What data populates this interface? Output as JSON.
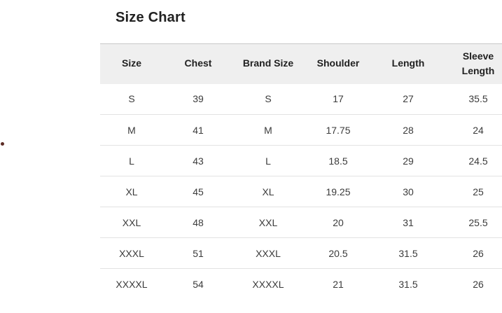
{
  "page": {
    "title": "Size Chart"
  },
  "table": {
    "columns": [
      "Size",
      "Chest",
      "Brand Size",
      "Shoulder",
      "Length",
      "Sleeve Length"
    ],
    "rows": [
      [
        "S",
        "39",
        "S",
        "17",
        "27",
        "35.5"
      ],
      [
        "M",
        "41",
        "M",
        "17.75",
        "28",
        "24"
      ],
      [
        "L",
        "43",
        "L",
        "18.5",
        "29",
        "24.5"
      ],
      [
        "XL",
        "45",
        "XL",
        "19.25",
        "30",
        "25"
      ],
      [
        "XXL",
        "48",
        "XXL",
        "20",
        "31",
        "25.5"
      ],
      [
        "XXXL",
        "51",
        "XXXL",
        "20.5",
        "31.5",
        "26"
      ],
      [
        "XXXXL",
        "54",
        "XXXXL",
        "21",
        "31.5",
        "26"
      ]
    ]
  },
  "decorations": {
    "stray_dot_color": "#5d2d26"
  }
}
